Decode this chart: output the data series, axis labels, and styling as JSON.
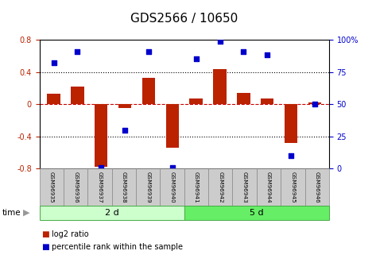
{
  "title": "GDS2566 / 10650",
  "samples": [
    "GSM96935",
    "GSM96936",
    "GSM96937",
    "GSM96938",
    "GSM96939",
    "GSM96940",
    "GSM96941",
    "GSM96942",
    "GSM96943",
    "GSM96944",
    "GSM96945",
    "GSM96946"
  ],
  "log2_ratio": [
    0.13,
    0.22,
    -0.78,
    -0.05,
    0.33,
    -0.54,
    0.07,
    0.44,
    0.14,
    0.07,
    -0.48,
    0.02
  ],
  "percentile": [
    82,
    91,
    1,
    30,
    91,
    1,
    85,
    99,
    91,
    88,
    10,
    50
  ],
  "groups": [
    {
      "label": "2 d",
      "start": 0,
      "end": 5,
      "color": "#ccffcc"
    },
    {
      "label": "5 d",
      "start": 6,
      "end": 11,
      "color": "#66ee66"
    }
  ],
  "ylim": [
    -0.8,
    0.8
  ],
  "y2lim": [
    0,
    100
  ],
  "bar_color": "#bb2200",
  "dot_color": "#0000cc",
  "dotted_line_color": "#000000",
  "zero_line_color": "#cc0000",
  "background_color": "#ffffff",
  "plot_bg": "#ffffff",
  "title_fontsize": 11,
  "tick_fontsize": 7,
  "label_fontsize": 8,
  "legend_items": [
    "log2 ratio",
    "percentile rank within the sample"
  ],
  "cell_color": "#cccccc",
  "cell_edge_color": "#888888",
  "group_edge_color": "#44aa44"
}
